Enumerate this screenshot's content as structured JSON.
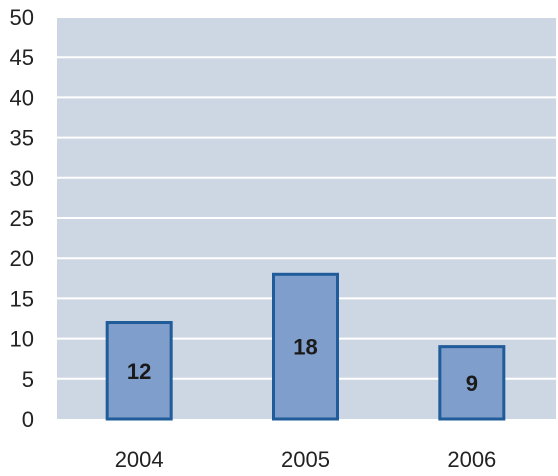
{
  "chart_data": {
    "type": "bar",
    "title": "",
    "xlabel": "",
    "ylabel": "",
    "categories": [
      "2004",
      "2005",
      "2006"
    ],
    "values": [
      12,
      18,
      9
    ],
    "data_labels": [
      "12",
      "18",
      "9"
    ],
    "ylim": [
      0,
      50
    ],
    "yticks": [
      0,
      5,
      10,
      15,
      20,
      25,
      30,
      35,
      40,
      45,
      50
    ],
    "ytick_labels": [
      "0",
      "5",
      "10",
      "15",
      "20",
      "25",
      "30",
      "35",
      "40",
      "45",
      "50"
    ],
    "grid": true,
    "legend": "none",
    "colors": {
      "plot_background": "#cdd7e4",
      "gridline": "#ffffff",
      "bar_fill": "#7f9ecb",
      "bar_stroke": "#1f5c99"
    }
  }
}
